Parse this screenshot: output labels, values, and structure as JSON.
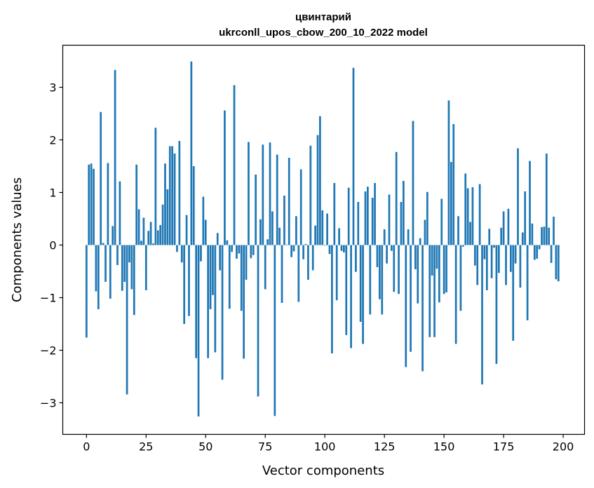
{
  "chart_data": {
    "type": "bar",
    "title_line1": "цвинтарий",
    "title_line2": "ukrconll_upos_cbow_200_10_2022 model",
    "xlabel": "Vector components",
    "ylabel": "Components values",
    "xlim": [
      -9.95,
      208.95
    ],
    "ylim": [
      -3.6,
      3.8
    ],
    "x_ticks": [
      0,
      25,
      50,
      75,
      100,
      125,
      150,
      175,
      200
    ],
    "x_tick_labels": [
      "0",
      "25",
      "50",
      "75",
      "100",
      "125",
      "150",
      "175",
      "200"
    ],
    "y_ticks": [
      -3,
      -2,
      -1,
      0,
      1,
      2,
      3
    ],
    "y_tick_labels": [
      "−3",
      "−2",
      "−1",
      "0",
      "1",
      "2",
      "3"
    ],
    "bar_color": "#1f77b4",
    "values": [
      -1.76,
      1.53,
      1.55,
      1.45,
      -0.88,
      -1.22,
      2.53,
      0.04,
      -0.7,
      1.56,
      -1.02,
      0.36,
      3.33,
      -0.38,
      1.21,
      -0.87,
      -0.7,
      -2.84,
      -0.33,
      -0.84,
      -1.33,
      1.53,
      0.68,
      0.08,
      0.52,
      -0.86,
      0.27,
      0.44,
      0.03,
      2.23,
      0.28,
      0.38,
      0.77,
      1.55,
      1.06,
      1.88,
      1.88,
      1.74,
      -0.13,
      1.98,
      -0.33,
      -1.5,
      0.57,
      -1.35,
      3.49,
      1.5,
      -2.15,
      -3.26,
      -0.31,
      0.92,
      0.48,
      -2.15,
      -1.22,
      -0.95,
      -2.04,
      0.23,
      -0.48,
      -2.56,
      2.56,
      0.09,
      -1.21,
      -0.13,
      3.04,
      -0.26,
      -0.16,
      -1.25,
      -2.16,
      -0.66,
      1.96,
      -0.25,
      -0.19,
      1.34,
      -2.88,
      0.49,
      1.91,
      -0.84,
      0.11,
      1.95,
      0.64,
      -3.25,
      1.72,
      0.33,
      -1.1,
      0.94,
      0.01,
      1.66,
      -0.23,
      -0.12,
      0.55,
      -1.08,
      1.44,
      -0.27,
      0.02,
      -0.66,
      1.89,
      -0.48,
      0.37,
      2.09,
      2.45,
      0.66,
      -0.01,
      0.6,
      -0.17,
      -2.06,
      1.18,
      -1.05,
      0.32,
      -0.11,
      -0.14,
      -1.71,
      1.09,
      -1.96,
      3.37,
      -0.51,
      0.82,
      -1.46,
      -1.88,
      1.02,
      1.11,
      -1.32,
      0.9,
      1.18,
      -0.42,
      -1.03,
      -1.32,
      0.3,
      -0.35,
      0.96,
      -0.11,
      -0.89,
      1.77,
      -0.93,
      0.82,
      1.22,
      -2.32,
      0.3,
      -2.03,
      2.36,
      -0.46,
      -1.11,
      0.13,
      -2.4,
      0.48,
      1.01,
      -1.75,
      -0.58,
      -1.75,
      -0.45,
      -1.09,
      0.88,
      -0.93,
      -0.9,
      2.75,
      1.58,
      2.3,
      -1.88,
      0.55,
      -1.25,
      -0.03,
      1.36,
      1.08,
      0.44,
      1.1,
      -0.39,
      -0.76,
      1.16,
      -2.65,
      -0.27,
      -0.86,
      0.31,
      -0.63,
      -0.05,
      -2.26,
      -0.53,
      0.33,
      0.64,
      -0.76,
      0.69,
      -0.51,
      -1.82,
      -0.35,
      1.84,
      -0.81,
      0.24,
      1.02,
      -1.43,
      1.6,
      0.41,
      -0.28,
      -0.26,
      -0.08,
      0.34,
      0.35,
      1.74,
      0.33,
      -0.34,
      0.54,
      -0.65,
      -0.69
    ]
  }
}
